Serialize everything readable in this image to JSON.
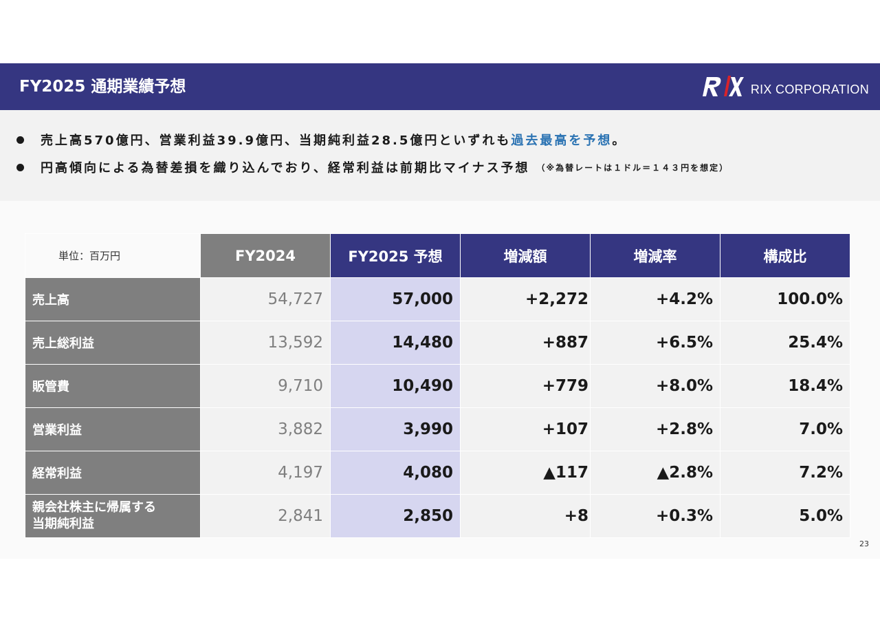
{
  "header": {
    "title": "FY2025 通期業績予想",
    "logo_text": "RIX CORPORATION",
    "logo_mark": "RIX"
  },
  "bullets": {
    "line1_main": "売上高570億円、営業利益39.9億円、当期純利益28.5億円といずれも",
    "line1_accent": "過去最高を予想",
    "line1_end": "。",
    "line2_main": "円高傾向による為替差損を織り込んでおり、経常利益は前期比マイナス予想",
    "line2_note": "（※為替レートは１ドル＝１４３円を想定）",
    "accent_color": "#2b73b3"
  },
  "table": {
    "unit": "単位：百万円",
    "headers": [
      "FY2024",
      "FY2025 予想",
      "増減額",
      "増減率",
      "構成比"
    ],
    "rows": [
      {
        "label": "売上高",
        "fy2024": "54,727",
        "fy2025": "57,000",
        "diff": "+2,272",
        "rate": "+4.2%",
        "ratio": "100.0%"
      },
      {
        "label": "売上総利益",
        "fy2024": "13,592",
        "fy2025": "14,480",
        "diff": "+887",
        "rate": "+6.5%",
        "ratio": "25.4%"
      },
      {
        "label": "販管費",
        "fy2024": "9,710",
        "fy2025": "10,490",
        "diff": "+779",
        "rate": "+8.0%",
        "ratio": "18.4%"
      },
      {
        "label": "営業利益",
        "fy2024": "3,882",
        "fy2025": "3,990",
        "diff": "+107",
        "rate": "+2.8%",
        "ratio": "7.0%"
      },
      {
        "label": "経常利益",
        "fy2024": "4,197",
        "fy2025": "4,080",
        "diff": "▲117",
        "rate": "▲2.8%",
        "ratio": "7.2%"
      },
      {
        "label_line1": "親会社株主に帰属する",
        "label_line2": "当期純利益",
        "fy2024": "2,841",
        "fy2025": "2,850",
        "diff": "+8",
        "rate": "+0.3%",
        "ratio": "5.0%"
      }
    ]
  },
  "page_number": "23",
  "colors": {
    "navy": "#353681",
    "gray_label": "#7f7f7f",
    "forecast_column": "#d6d6f0"
  }
}
